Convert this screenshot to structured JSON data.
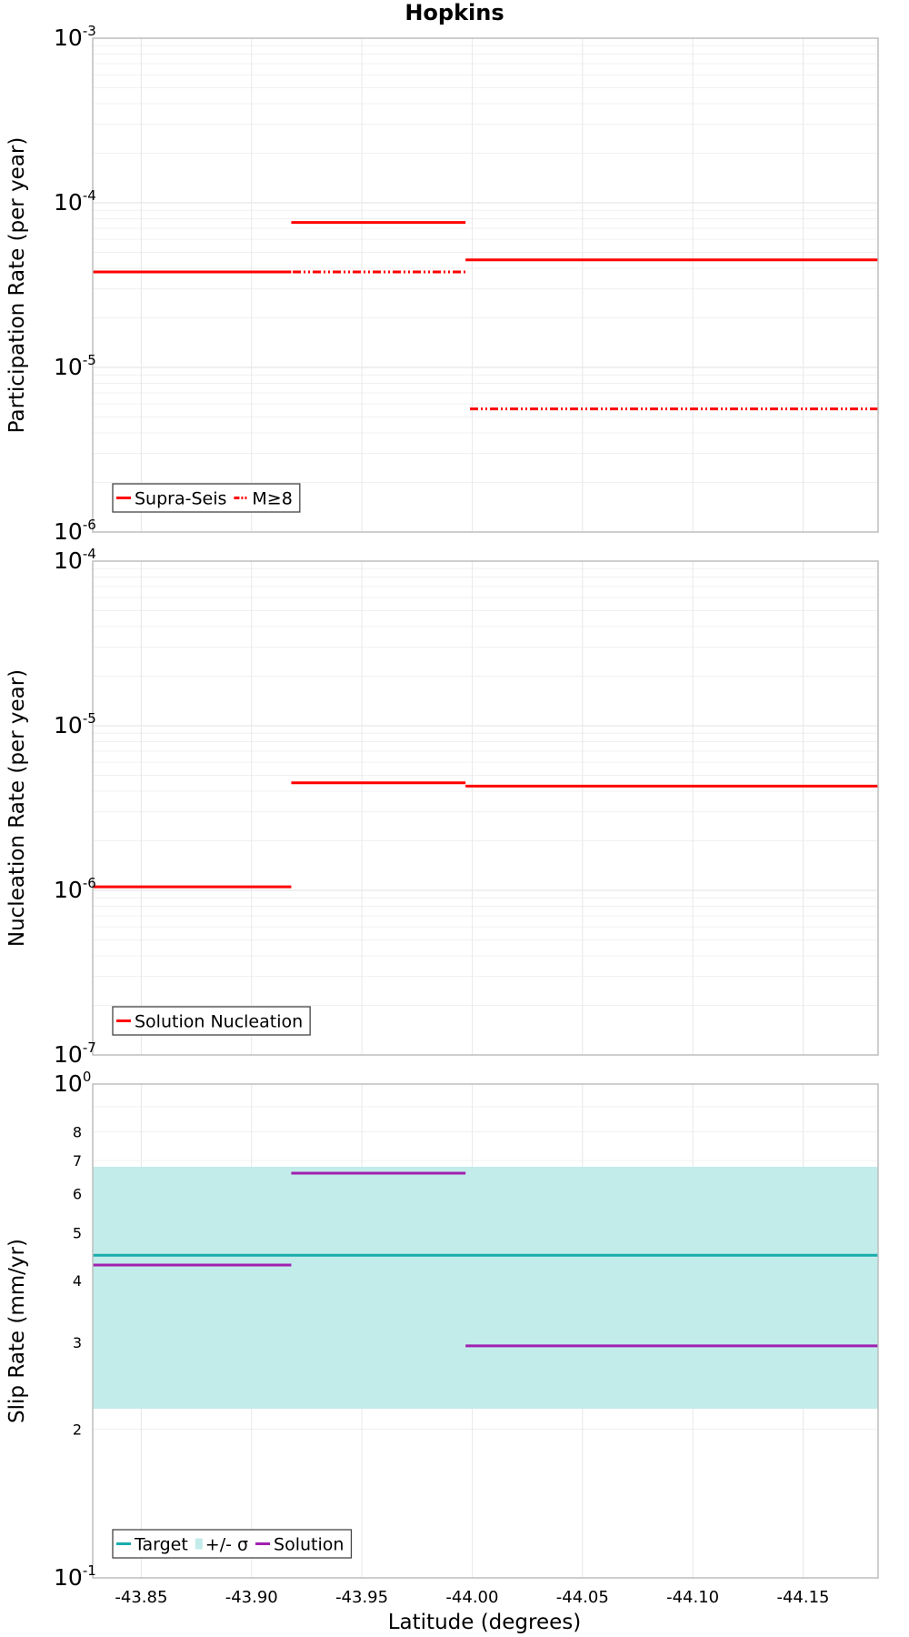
{
  "chart_data": [
    {
      "type": "line",
      "title": "Hopkins",
      "ylabel": "Participation Rate (per year)",
      "xlabel": "",
      "yscale": "log",
      "ylim": [
        1e-06,
        0.001
      ],
      "xlim": [
        -43.828,
        -44.184
      ],
      "grid": true,
      "legend_position": "bottom-left",
      "series": [
        {
          "name": "Supra-Seis",
          "color": "#ff0000",
          "style": "solid",
          "segments": [
            {
              "x": [
                -43.828,
                -43.918
              ],
              "y": 3.8e-05
            },
            {
              "x": [
                -43.918,
                -43.997
              ],
              "y": 7.6e-05
            },
            {
              "x": [
                -43.997,
                -44.184
              ],
              "y": 4.5e-05
            }
          ]
        },
        {
          "name": "M≥8",
          "color": "#ff0000",
          "style": "dash-dot-dot",
          "segments": [
            {
              "x": [
                -43.828,
                -43.997
              ],
              "y": 3.8e-05
            },
            {
              "x": [
                -43.999,
                -44.184
              ],
              "y": 5.6e-06
            }
          ]
        }
      ]
    },
    {
      "type": "line",
      "title": "",
      "ylabel": "Nucleation Rate (per year)",
      "xlabel": "",
      "yscale": "log",
      "ylim": [
        1e-07,
        0.0001
      ],
      "xlim": [
        -43.828,
        -44.184
      ],
      "grid": true,
      "legend_position": "bottom-left",
      "series": [
        {
          "name": "Solution Nucleation",
          "color": "#ff0000",
          "style": "solid",
          "segments": [
            {
              "x": [
                -43.828,
                -43.918
              ],
              "y": 1.05e-06
            },
            {
              "x": [
                -43.918,
                -43.997
              ],
              "y": 4.5e-06
            },
            {
              "x": [
                -43.997,
                -44.184
              ],
              "y": 4.3e-06
            }
          ]
        }
      ]
    },
    {
      "type": "line",
      "title": "",
      "ylabel": "Slip Rate (mm/yr)",
      "xlabel": "Latitude (degrees)",
      "yscale": "log",
      "ylim": [
        0.1,
        1.0
      ],
      "xlim": [
        -43.828,
        -44.184
      ],
      "grid": true,
      "legend_position": "bottom-left",
      "series": [
        {
          "name": "Target",
          "color": "#1aacac",
          "style": "solid",
          "segments": [
            {
              "x": [
                -43.828,
                -44.184
              ],
              "y": 0.45
            }
          ]
        },
        {
          "name": "+/- σ",
          "color": "#c2ecea",
          "style": "band",
          "band": {
            "x": [
              -43.828,
              -44.184
            ],
            "y_low": 0.22,
            "y_high": 0.68
          }
        },
        {
          "name": "Solution",
          "color": "#a020b0",
          "style": "solid",
          "segments": [
            {
              "x": [
                -43.828,
                -43.918
              ],
              "y": 0.43
            },
            {
              "x": [
                -43.918,
                -43.997
              ],
              "y": 0.66
            },
            {
              "x": [
                -43.997,
                -44.184
              ],
              "y": 0.295
            }
          ]
        }
      ]
    }
  ],
  "x_ticks": [
    {
      "value": -43.85,
      "label": "-43.85"
    },
    {
      "value": -43.9,
      "label": "-43.90"
    },
    {
      "value": -43.95,
      "label": "-43.95"
    },
    {
      "value": -44.0,
      "label": "-44.00"
    },
    {
      "value": -44.05,
      "label": "-44.05"
    },
    {
      "value": -44.1,
      "label": "-44.10"
    },
    {
      "value": -44.15,
      "label": "-44.15"
    }
  ],
  "panel_ticks": [
    [
      {
        "base": "10",
        "exp": "-3"
      },
      {
        "base": "10",
        "exp": "-4"
      },
      {
        "base": "10",
        "exp": "-5"
      },
      {
        "base": "10",
        "exp": "-6"
      }
    ],
    [
      {
        "base": "10",
        "exp": "-4"
      },
      {
        "base": "10",
        "exp": "-5"
      },
      {
        "base": "10",
        "exp": "-6"
      },
      {
        "base": "10",
        "exp": "-7"
      }
    ],
    [
      {
        "base": "10",
        "exp": "0"
      },
      {
        "base": "10",
        "exp": "-1"
      }
    ]
  ],
  "slip_minor_labels": [
    {
      "value": 0.8,
      "label": "8"
    },
    {
      "value": 0.7,
      "label": "7"
    },
    {
      "value": 0.6,
      "label": "6"
    },
    {
      "value": 0.5,
      "label": "5"
    },
    {
      "value": 0.4,
      "label": "4"
    },
    {
      "value": 0.3,
      "label": "3"
    },
    {
      "value": 0.2,
      "label": "2"
    }
  ]
}
